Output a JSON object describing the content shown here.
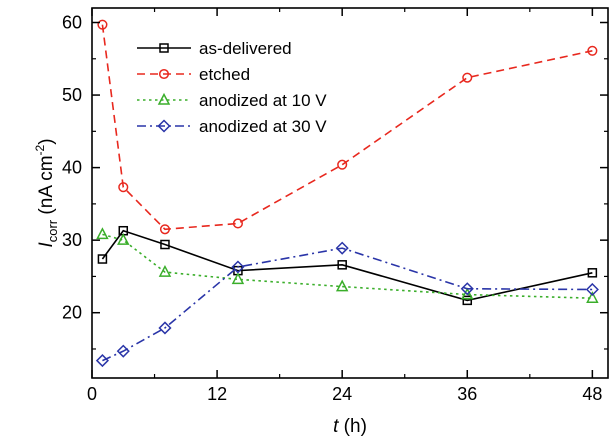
{
  "chart_data": {
    "type": "line",
    "xlabel_var": "t",
    "xlabel_unit": " (h)",
    "ylabel_var": "I",
    "ylabel_sub": "corr",
    "ylabel_unit_main": " (nA cm",
    "ylabel_unit_sup": "-2",
    "ylabel_unit_close": ")",
    "xlim": [
      0,
      49.5
    ],
    "ylim": [
      11,
      62
    ],
    "xticks": [
      0,
      12,
      24,
      36,
      48
    ],
    "yticks": [
      20,
      30,
      40,
      50,
      60
    ],
    "legend_position": "top-left",
    "grid": false,
    "series": [
      {
        "name": "as-delivered",
        "color": "#000000",
        "dash": "solid",
        "marker": "square",
        "x": [
          1,
          3,
          7,
          14,
          24,
          36,
          48
        ],
        "y": [
          27.4,
          31.3,
          29.4,
          25.8,
          26.6,
          21.7,
          25.5
        ]
      },
      {
        "name": "etched",
        "color": "#e8281e",
        "dash": "dashed",
        "marker": "circle",
        "x": [
          1,
          3,
          7,
          14,
          24,
          36,
          48
        ],
        "y": [
          59.7,
          37.3,
          31.5,
          32.3,
          40.4,
          52.4,
          56.1
        ]
      },
      {
        "name": "anodized at 10 V",
        "color": "#3aae2a",
        "dash": "dotted",
        "marker": "triangle",
        "x": [
          1,
          3,
          7,
          14,
          24,
          36,
          48
        ],
        "y": [
          30.8,
          30.0,
          25.6,
          24.6,
          23.6,
          22.5,
          22.0
        ]
      },
      {
        "name": "anodized at 30 V",
        "color": "#2a35a8",
        "dash": "dashdot",
        "marker": "diamond",
        "x": [
          1,
          3,
          7,
          14,
          24,
          36,
          48
        ],
        "y": [
          13.4,
          14.7,
          17.9,
          26.3,
          28.9,
          23.3,
          23.2
        ]
      }
    ]
  }
}
